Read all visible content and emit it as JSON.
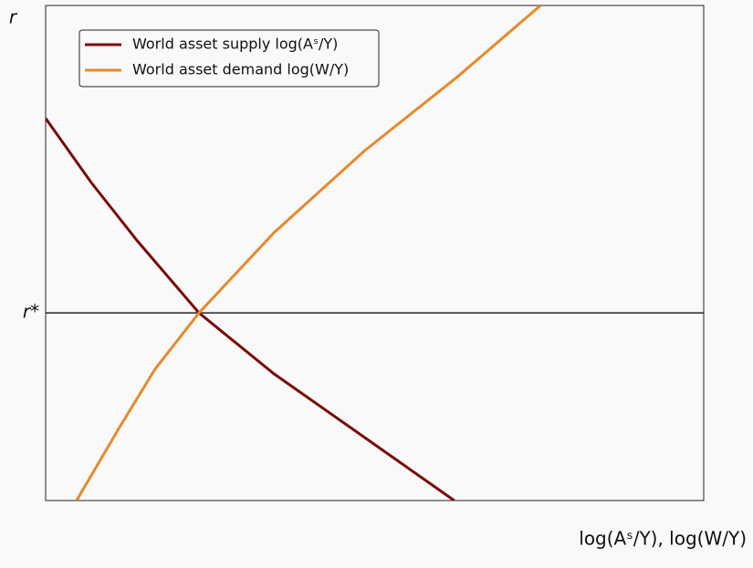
{
  "chart_data": {
    "type": "line",
    "ylabel": "r",
    "xlabel": "log(Aˢ/Y),  log(W/Y)",
    "xlim": [
      0,
      1
    ],
    "ylim": [
      0,
      1
    ],
    "yticks": [
      {
        "value": 0.379,
        "label": "r*"
      }
    ],
    "legend": "upper left",
    "series": [
      {
        "name": "World asset supply log(Aˢ/Y)",
        "color": "#7a0a06",
        "x": [
          0,
          0.069,
          0.139,
          0.233,
          0.347,
          0.485,
          0.621
        ],
        "values": [
          0.772,
          0.643,
          0.525,
          0.379,
          0.256,
          0.127,
          0
        ]
      },
      {
        "name": "World asset demand log(W/Y)",
        "color": "#e8892a",
        "x": [
          0.047,
          0.111,
          0.166,
          0.233,
          0.347,
          0.485,
          0.624,
          0.752
        ],
        "values": [
          0,
          0.145,
          0.265,
          0.379,
          0.541,
          0.707,
          0.854,
          1
        ]
      }
    ]
  }
}
